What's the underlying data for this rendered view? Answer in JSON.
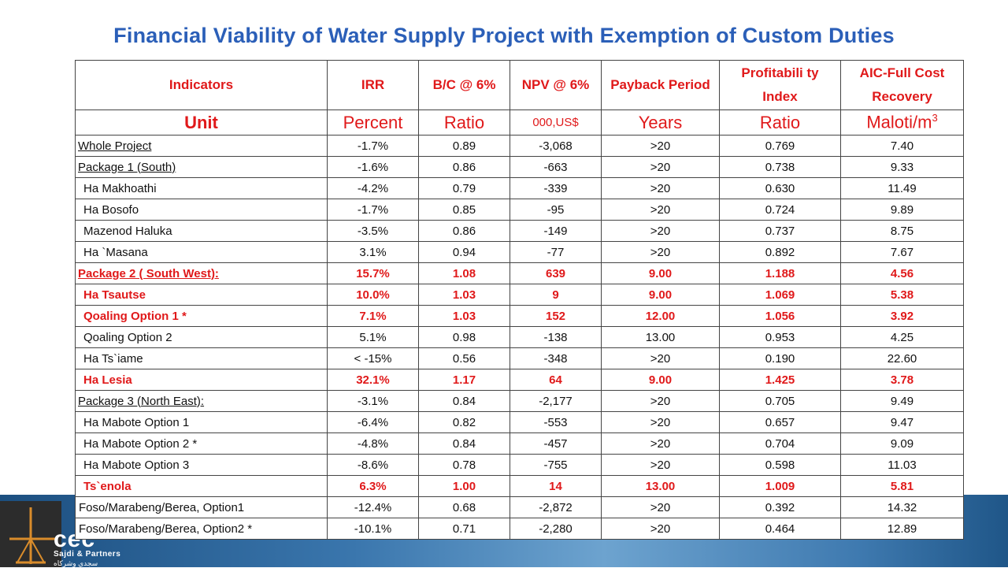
{
  "title": "Financial Viability of Water Supply Project with Exemption of Custom Duties",
  "headers": [
    "Indicators",
    "IRR",
    "B/C @ 6%",
    "NPV @ 6%",
    "Payback Period",
    "Profitabili ty Index",
    "AIC-Full Cost Recovery"
  ],
  "units": {
    "label": "Unit",
    "irr": "Percent",
    "bc": "Ratio",
    "npv": "000,US$",
    "payback": "Years",
    "pi": "Ratio",
    "aic": "Maloti/m",
    "aic_sup": "3"
  },
  "rows": [
    {
      "name": "Whole Project",
      "irr": "-1.7%",
      "bc": "0.89",
      "npv": "-3,068",
      "payback": ">20",
      "pi": "0.769",
      "aic": "7.40",
      "style": "pkg"
    },
    {
      "name": "Package 1 (South)",
      "irr": "-1.6%",
      "bc": "0.86",
      "npv": "-663",
      "payback": ">20",
      "pi": "0.738",
      "aic": "9.33",
      "style": "pkg"
    },
    {
      "name": "Ha Makhoathi",
      "irr": "-4.2%",
      "bc": "0.79",
      "npv": "-339",
      "payback": ">20",
      "pi": "0.630",
      "aic": "11.49",
      "style": "sub"
    },
    {
      "name": "Ha Bosofo",
      "irr": "-1.7%",
      "bc": "0.85",
      "npv": "-95",
      "payback": ">20",
      "pi": "0.724",
      "aic": "9.89",
      "style": "sub"
    },
    {
      "name": "Mazenod Haluka",
      "irr": "-3.5%",
      "bc": "0.86",
      "npv": "-149",
      "payback": ">20",
      "pi": "0.737",
      "aic": "8.75",
      "style": "sub"
    },
    {
      "name": "Ha `Masana",
      "irr": "3.1%",
      "bc": "0.94",
      "npv": "-77",
      "payback": ">20",
      "pi": "0.892",
      "aic": "7.67",
      "style": "sub"
    },
    {
      "name": "Package 2 ( South West):",
      "irr": "15.7%",
      "bc": "1.08",
      "npv": "639",
      "payback": "9.00",
      "pi": "1.188",
      "aic": "4.56",
      "style": "pkg",
      "highlight": true
    },
    {
      "name": "Ha Tsautse",
      "irr": "10.0%",
      "bc": "1.03",
      "npv": "9",
      "payback": "9.00",
      "pi": "1.069",
      "aic": "5.38",
      "style": "sub",
      "highlight": true
    },
    {
      "name": "Qoaling Option 1 *",
      "irr": "7.1%",
      "bc": "1.03",
      "npv": "152",
      "payback": "12.00",
      "pi": "1.056",
      "aic": "3.92",
      "style": "sub",
      "highlight": true
    },
    {
      "name": "Qoaling Option 2",
      "irr": "5.1%",
      "bc": "0.98",
      "npv": "-138",
      "payback": "13.00",
      "pi": "0.953",
      "aic": "4.25",
      "style": "sub"
    },
    {
      "name": "Ha Ts`iame",
      "irr": "< -15%",
      "bc": "0.56",
      "npv": "-348",
      "payback": ">20",
      "pi": "0.190",
      "aic": "22.60",
      "style": "sub"
    },
    {
      "name": "Ha Lesia",
      "irr": "32.1%",
      "bc": "1.17",
      "npv": "64",
      "payback": "9.00",
      "pi": "1.425",
      "aic": "3.78",
      "style": "sub",
      "highlight": true
    },
    {
      "name": "Package 3  (North East):",
      "irr": "-3.1%",
      "bc": "0.84",
      "npv": "-2,177",
      "payback": ">20",
      "pi": "0.705",
      "aic": "9.49",
      "style": "pkg"
    },
    {
      "name": "Ha Mabote Option 1",
      "irr": "-6.4%",
      "bc": "0.82",
      "npv": "-553",
      "payback": ">20",
      "pi": "0.657",
      "aic": "9.47",
      "style": "sub"
    },
    {
      "name": "Ha Mabote Option 2 *",
      "irr": "-4.8%",
      "bc": "0.84",
      "npv": "-457",
      "payback": ">20",
      "pi": "0.704",
      "aic": "9.09",
      "style": "sub"
    },
    {
      "name": "Ha Mabote Option 3",
      "irr": "-8.6%",
      "bc": "0.78",
      "npv": "-755",
      "payback": ">20",
      "pi": "0.598",
      "aic": "11.03",
      "style": "sub"
    },
    {
      "name": "Ts`enola",
      "irr": "6.3%",
      "bc": "1.00",
      "npv": "14",
      "payback": "13.00",
      "pi": "1.009",
      "aic": "5.81",
      "style": "sub",
      "highlight": true
    },
    {
      "name": "Foso/Marabeng/Berea, Option1",
      "irr": "-12.4%",
      "bc": "0.68",
      "npv": "-2,872",
      "payback": ">20",
      "pi": "0.392",
      "aic": "14.32",
      "style": "plain"
    },
    {
      "name": "Foso/Marabeng/Berea, Option2  *",
      "irr": "-10.1%",
      "bc": "0.71",
      "npv": "-2,280",
      "payback": ">20",
      "pi": "0.464",
      "aic": "12.89",
      "style": "plain"
    }
  ],
  "logo": {
    "text": "cec",
    "sub": "Sajdi & Partners",
    "sub_ar": "سجدي وشركاه"
  },
  "colors": {
    "title": "#2b5fb8",
    "highlight": "#e0191a",
    "band": "#3a76ad"
  }
}
